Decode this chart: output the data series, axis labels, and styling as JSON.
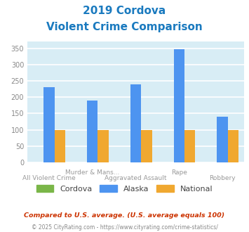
{
  "title_line1": "2019 Cordova",
  "title_line2": "Violent Crime Comparison",
  "title_color": "#1a7abf",
  "categories": [
    "All Violent Crime",
    "Murder & Mans...",
    "Aggravated Assault",
    "Rape",
    "Robbery"
  ],
  "cordova_values": [
    0,
    0,
    0,
    0,
    0
  ],
  "alaska_values": [
    230,
    190,
    240,
    348,
    140
  ],
  "national_values": [
    100,
    100,
    100,
    100,
    100
  ],
  "cordova_color": "#7ab648",
  "alaska_color": "#4d94f0",
  "national_color": "#f0a830",
  "fig_bg_color": "#ffffff",
  "plot_bg_color": "#d8edf5",
  "ylim": [
    0,
    370
  ],
  "yticks": [
    0,
    50,
    100,
    150,
    200,
    250,
    300,
    350
  ],
  "grid_color": "#ffffff",
  "footnote1": "Compared to U.S. average. (U.S. average equals 100)",
  "footnote2": "© 2025 CityRating.com - https://www.cityrating.com/crime-statistics/",
  "footnote1_color": "#cc3300",
  "footnote2_color": "#888888",
  "bar_width": 0.25,
  "legend_label_color": "#444444"
}
